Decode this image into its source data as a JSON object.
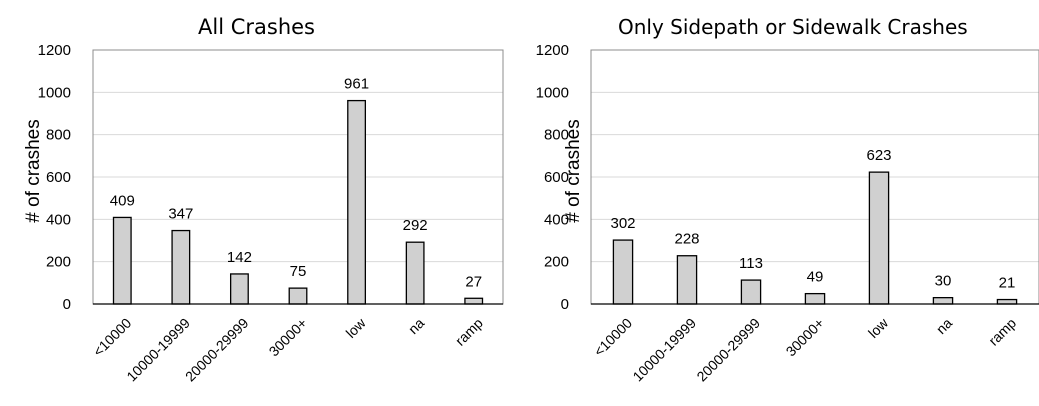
{
  "chart_data": [
    {
      "type": "bar",
      "title": "All Crashes",
      "xlabel": "",
      "ylabel": "# of crashes",
      "ylim": [
        0,
        1200
      ],
      "yticks": [
        0,
        200,
        400,
        600,
        800,
        1000,
        1200
      ],
      "grid": true,
      "categories": [
        "<10000",
        "10000-19999",
        "20000-29999",
        "30000+",
        "low",
        "na",
        "ramp"
      ],
      "values": [
        409,
        347,
        142,
        75,
        961,
        292,
        27
      ],
      "bar_color": "#d0d0d0"
    },
    {
      "type": "bar",
      "title": "Only Sidepath or Sidewalk Crashes",
      "xlabel": "",
      "ylabel": "# of crashes",
      "ylim": [
        0,
        1200
      ],
      "yticks": [
        0,
        200,
        400,
        600,
        800,
        1000,
        1200
      ],
      "grid": true,
      "categories": [
        "<10000",
        "10000-19999",
        "20000-29999",
        "30000+",
        "low",
        "na",
        "ramp"
      ],
      "values": [
        302,
        228,
        113,
        49,
        623,
        30,
        21
      ],
      "bar_color": "#d0d0d0"
    }
  ]
}
